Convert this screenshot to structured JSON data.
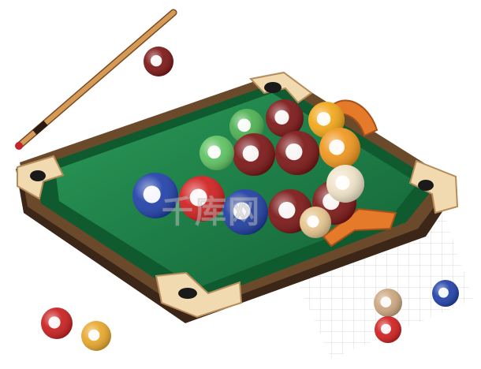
{
  "illustration": {
    "subject": "billiards-table-with-cue-and-balls",
    "colors": {
      "felt": "#1f7a45",
      "felt_dark": "#135c33",
      "rail": "#0f5a2e",
      "frame_wood": "#6b4a2b",
      "frame_dark": "#3b2618",
      "corner_pad": "#f1d9b0",
      "cue_wood": "#c98b4a",
      "cue_tip": "#c0262b"
    },
    "balls": [
      {
        "id": "maroon-1",
        "color": "#7a1414"
      },
      {
        "id": "green-1",
        "color": "#4caf50"
      },
      {
        "id": "maroon-2",
        "color": "#7a1414"
      },
      {
        "id": "yellow-1",
        "color": "#f2a616"
      },
      {
        "id": "green-2",
        "color": "#5cc15f"
      },
      {
        "id": "maroon-3",
        "color": "#7a1414"
      },
      {
        "id": "orange-1",
        "color": "#f0951b"
      },
      {
        "id": "blue-1",
        "color": "#1f3fa8"
      },
      {
        "id": "red-1",
        "color": "#d01d1d"
      },
      {
        "id": "blue-2",
        "color": "#1d3ca0"
      },
      {
        "id": "maroon-4",
        "color": "#7a1414"
      },
      {
        "id": "maroon-5",
        "color": "#7a1414"
      },
      {
        "id": "cream-1",
        "color": "#efe2c7"
      },
      {
        "id": "tan-1",
        "color": "#e6c48d"
      }
    ],
    "loose_balls": [
      {
        "id": "maroon-top",
        "color": "#7a1414"
      },
      {
        "id": "red-bottom-left",
        "color": "#c81d1d"
      },
      {
        "id": "yellow-bottom-left",
        "color": "#e7a62a"
      },
      {
        "id": "tan-bottom-right",
        "color": "#caa57d"
      },
      {
        "id": "red-bottom-right",
        "color": "#d01d1d"
      },
      {
        "id": "blue-bottom-right",
        "color": "#1e3fa6"
      }
    ],
    "watermark": "千库网"
  }
}
